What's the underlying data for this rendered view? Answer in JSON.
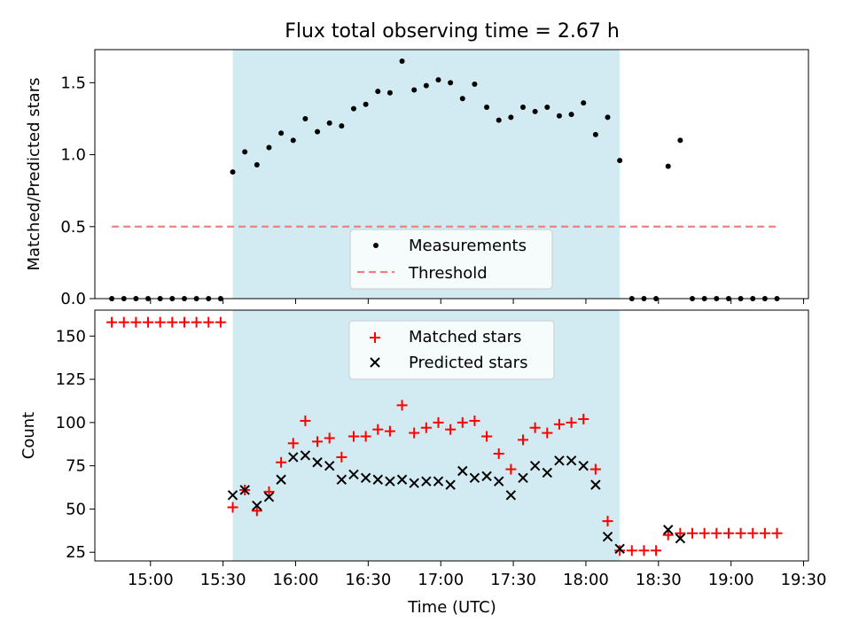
{
  "chart_data": [
    {
      "type": "scatter",
      "title": "Flux total observing time = 2.67 h",
      "ylabel": "Matched/Predicted stars",
      "ylim": [
        0,
        1.73
      ],
      "yticks": [
        0.0,
        0.5,
        1.0,
        1.5
      ],
      "ytick_labels": [
        "0.0",
        "0.5",
        "1.0",
        "1.5"
      ],
      "shaded_interval": [
        "15:34",
        "18:14"
      ],
      "shade_color": "#add8e6",
      "threshold": {
        "name": "Threshold",
        "value": 0.5,
        "x_range": [
          "14:44",
          "19:19"
        ],
        "color": "#f08080"
      },
      "legend": {
        "placement": "lower-center",
        "entries": [
          "Measurements",
          "Threshold"
        ]
      },
      "series": [
        {
          "name": "Measurements",
          "marker": "dot",
          "color": "#000000",
          "points": [
            [
              "14:44",
              0.0
            ],
            [
              "14:49",
              0.0
            ],
            [
              "14:54",
              0.0
            ],
            [
              "14:59",
              0.0
            ],
            [
              "15:04",
              0.0
            ],
            [
              "15:09",
              0.0
            ],
            [
              "15:14",
              0.0
            ],
            [
              "15:19",
              0.0
            ],
            [
              "15:24",
              0.0
            ],
            [
              "15:29",
              0.0
            ],
            [
              "15:34",
              0.88
            ],
            [
              "15:39",
              1.02
            ],
            [
              "15:44",
              0.93
            ],
            [
              "15:49",
              1.05
            ],
            [
              "15:54",
              1.15
            ],
            [
              "15:59",
              1.1
            ],
            [
              "16:04",
              1.25
            ],
            [
              "16:09",
              1.16
            ],
            [
              "16:14",
              1.22
            ],
            [
              "16:19",
              1.2
            ],
            [
              "16:24",
              1.32
            ],
            [
              "16:29",
              1.35
            ],
            [
              "16:34",
              1.44
            ],
            [
              "16:39",
              1.43
            ],
            [
              "16:44",
              1.65
            ],
            [
              "16:49",
              1.45
            ],
            [
              "16:54",
              1.48
            ],
            [
              "16:59",
              1.52
            ],
            [
              "17:04",
              1.5
            ],
            [
              "17:09",
              1.39
            ],
            [
              "17:14",
              1.49
            ],
            [
              "17:19",
              1.33
            ],
            [
              "17:24",
              1.24
            ],
            [
              "17:29",
              1.26
            ],
            [
              "17:34",
              1.33
            ],
            [
              "17:39",
              1.3
            ],
            [
              "17:44",
              1.33
            ],
            [
              "17:49",
              1.27
            ],
            [
              "17:54",
              1.28
            ],
            [
              "17:59",
              1.36
            ],
            [
              "18:04",
              1.14
            ],
            [
              "18:09",
              1.26
            ],
            [
              "18:14",
              0.96
            ],
            [
              "18:19",
              0.0
            ],
            [
              "18:24",
              0.0
            ],
            [
              "18:29",
              0.0
            ],
            [
              "18:34",
              0.92
            ],
            [
              "18:39",
              1.1
            ],
            [
              "18:44",
              0.0
            ],
            [
              "18:49",
              0.0
            ],
            [
              "18:54",
              0.0
            ],
            [
              "18:59",
              0.0
            ],
            [
              "19:04",
              0.0
            ],
            [
              "19:09",
              0.0
            ],
            [
              "19:14",
              0.0
            ],
            [
              "19:19",
              0.0
            ]
          ]
        }
      ]
    },
    {
      "type": "scatter",
      "xlabel": "Time (UTC)",
      "ylabel": "Count",
      "xlim": [
        "14:37",
        "19:32"
      ],
      "ylim": [
        20,
        165
      ],
      "xticks": [
        "15:00",
        "15:30",
        "16:00",
        "16:30",
        "17:00",
        "17:30",
        "18:00",
        "18:30",
        "19:00",
        "19:30"
      ],
      "yticks": [
        25,
        50,
        75,
        100,
        125,
        150
      ],
      "ytick_labels": [
        "25",
        "50",
        "75",
        "100",
        "125",
        "150"
      ],
      "shaded_interval": [
        "15:34",
        "18:14"
      ],
      "shade_color": "#add8e6",
      "legend": {
        "placement": "upper-center",
        "entries": [
          "Matched stars",
          "Predicted stars"
        ]
      },
      "series": [
        {
          "name": "Matched stars",
          "marker": "plus",
          "color": "#ff0000",
          "points": [
            [
              "14:44",
              158
            ],
            [
              "14:49",
              158
            ],
            [
              "14:54",
              158
            ],
            [
              "14:59",
              158
            ],
            [
              "15:04",
              158
            ],
            [
              "15:09",
              158
            ],
            [
              "15:14",
              158
            ],
            [
              "15:19",
              158
            ],
            [
              "15:24",
              158
            ],
            [
              "15:29",
              158
            ],
            [
              "15:34",
              51
            ],
            [
              "15:39",
              61
            ],
            [
              "15:44",
              49
            ],
            [
              "15:49",
              60
            ],
            [
              "15:54",
              77
            ],
            [
              "15:59",
              88
            ],
            [
              "16:04",
              101
            ],
            [
              "16:09",
              89
            ],
            [
              "16:14",
              91
            ],
            [
              "16:19",
              80
            ],
            [
              "16:24",
              92
            ],
            [
              "16:29",
              92
            ],
            [
              "16:34",
              96
            ],
            [
              "16:39",
              95
            ],
            [
              "16:44",
              110
            ],
            [
              "16:49",
              94
            ],
            [
              "16:54",
              97
            ],
            [
              "16:59",
              100
            ],
            [
              "17:04",
              96
            ],
            [
              "17:09",
              100
            ],
            [
              "17:14",
              101
            ],
            [
              "17:19",
              92
            ],
            [
              "17:24",
              82
            ],
            [
              "17:29",
              73
            ],
            [
              "17:34",
              90
            ],
            [
              "17:39",
              97
            ],
            [
              "17:44",
              94
            ],
            [
              "17:49",
              99
            ],
            [
              "17:54",
              100
            ],
            [
              "17:59",
              102
            ],
            [
              "18:04",
              73
            ],
            [
              "18:09",
              43
            ],
            [
              "18:14",
              26
            ],
            [
              "18:19",
              26
            ],
            [
              "18:24",
              26
            ],
            [
              "18:29",
              26
            ],
            [
              "18:34",
              35
            ],
            [
              "18:39",
              36
            ],
            [
              "18:44",
              36
            ],
            [
              "18:49",
              36
            ],
            [
              "18:54",
              36
            ],
            [
              "18:59",
              36
            ],
            [
              "19:04",
              36
            ],
            [
              "19:09",
              36
            ],
            [
              "19:14",
              36
            ],
            [
              "19:19",
              36
            ]
          ]
        },
        {
          "name": "Predicted stars",
          "marker": "x",
          "color": "#000000",
          "points": [
            [
              "15:34",
              58
            ],
            [
              "15:39",
              61
            ],
            [
              "15:44",
              52
            ],
            [
              "15:49",
              57
            ],
            [
              "15:54",
              67
            ],
            [
              "15:59",
              80
            ],
            [
              "16:04",
              81
            ],
            [
              "16:09",
              77
            ],
            [
              "16:14",
              75
            ],
            [
              "16:19",
              67
            ],
            [
              "16:24",
              70
            ],
            [
              "16:29",
              68
            ],
            [
              "16:34",
              67
            ],
            [
              "16:39",
              66
            ],
            [
              "16:44",
              67
            ],
            [
              "16:49",
              65
            ],
            [
              "16:54",
              66
            ],
            [
              "16:59",
              66
            ],
            [
              "17:04",
              64
            ],
            [
              "17:09",
              72
            ],
            [
              "17:14",
              68
            ],
            [
              "17:19",
              69
            ],
            [
              "17:24",
              66
            ],
            [
              "17:29",
              58
            ],
            [
              "17:34",
              68
            ],
            [
              "17:39",
              75
            ],
            [
              "17:44",
              71
            ],
            [
              "17:49",
              78
            ],
            [
              "17:54",
              78
            ],
            [
              "17:59",
              75
            ],
            [
              "18:04",
              64
            ],
            [
              "18:09",
              34
            ],
            [
              "18:14",
              27
            ],
            [
              "18:34",
              38
            ],
            [
              "18:39",
              33
            ]
          ]
        }
      ]
    }
  ]
}
